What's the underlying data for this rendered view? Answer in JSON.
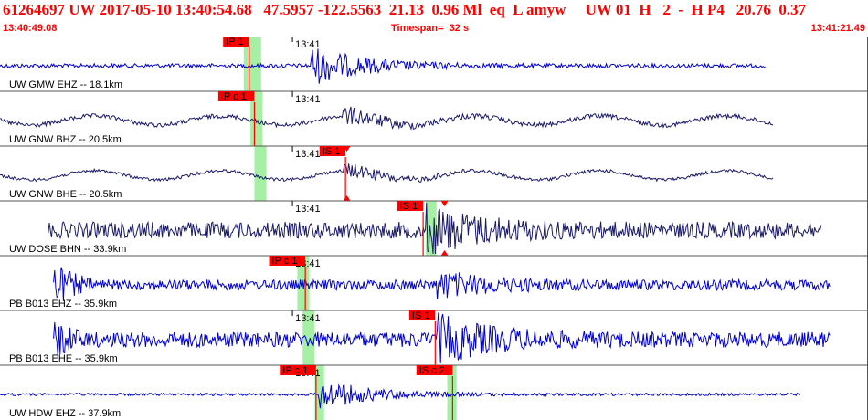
{
  "header": {
    "title": "61264697 UW 2017-05-10 13:40:54.68   47.5957 -122.5563  21.13  0.96 Ml  eq  L amyw     UW 01  H   2  -  H P4   20.76  0.37",
    "start_time": "13:40:49.08",
    "timespan": "Timespan=  32 s",
    "end_time": "13:41:21.49"
  },
  "colors": {
    "accent": "#ff0000",
    "trace_blue": "#0000cc",
    "trace_dark": "#1a1a66",
    "pick_window": "#a6f0a6",
    "separator": "#555555"
  },
  "time_window": {
    "start_s": 0,
    "end_s": 32.41,
    "minute_mark_label": "13:41",
    "minute_mark_s": 10.92
  },
  "channels": [
    {
      "label": "UW GMW EHZ -- 18.1km",
      "trace_color": "trace_blue",
      "picks": [
        {
          "label": "IP 1",
          "time_s": 9.3,
          "window": [
            9.1,
            9.75
          ],
          "color": "red"
        }
      ],
      "onset_s": 11.6,
      "amp": 0.75,
      "noise": 0.08,
      "wave": "noise",
      "extent": [
        0,
        28.6
      ],
      "triangles": []
    },
    {
      "label": "UW GNW BHZ -- 20.5km",
      "trace_color": "trace_dark",
      "picks": [
        {
          "label": "IP c 1",
          "time_s": 9.5,
          "window": [
            9.35,
            9.8
          ],
          "color": "red"
        }
      ],
      "onset_s": 12.8,
      "amp": 0.55,
      "noise": 0.14,
      "wave": "swell",
      "extent": [
        0,
        28.9
      ],
      "triangles": []
    },
    {
      "label": "UW GNW BHE -- 20.5km",
      "trace_color": "trace_dark",
      "picks": [
        {
          "label": "IS 1",
          "time_s": 12.9,
          "window": [
            9.5,
            9.95
          ],
          "color": "red"
        }
      ],
      "onset_s": 12.8,
      "amp": 0.45,
      "noise": 0.1,
      "wave": "swell",
      "extent": [
        0,
        28.9
      ],
      "triangles": [
        12.95
      ]
    },
    {
      "label": "UW DOSE BHN -- 33.9km",
      "trace_color": "trace_dark",
      "picks": [
        {
          "label": "IS 1",
          "time_s": 15.8,
          "window": [
            15.9,
            16.3
          ],
          "color": "red"
        }
      ],
      "onset_s": 15.9,
      "amp": 0.85,
      "noise": 0.32,
      "wave": "noise",
      "extent": [
        1.8,
        30.7
      ],
      "triangles": [
        16.6
      ]
    },
    {
      "label": "PB B013 EHZ -- 35.9km",
      "trace_color": "trace_blue",
      "picks": [
        {
          "label": "IP c 1",
          "time_s": 11.4,
          "window": [
            11.1,
            11.55
          ],
          "color": "red"
        }
      ],
      "onset_s": 16.3,
      "amp": 0.45,
      "noise": 0.2,
      "wave": "ring",
      "extent": [
        2.0,
        31.0
      ],
      "triangles": []
    },
    {
      "label": "PB B013 EHE -- 35.9km",
      "trace_color": "trace_blue",
      "picks": [
        {
          "label": "IS 1",
          "time_s": 16.25,
          "window": [
            11.3,
            11.75
          ],
          "color": "red"
        }
      ],
      "onset_s": 16.3,
      "amp": 0.8,
      "noise": 0.3,
      "wave": "ring",
      "extent": [
        2.0,
        31.0
      ],
      "triangles": []
    },
    {
      "label": "UW HDW EHZ -- 37.9km",
      "trace_color": "trace_blue",
      "picks": [
        {
          "label": "IP c 1",
          "time_s": 11.8,
          "window": [
            11.75,
            12.1
          ],
          "color": "red"
        },
        {
          "label": "IS c 2",
          "time_s": 16.9,
          "window": [
            16.7,
            17.05
          ],
          "color": "red"
        }
      ],
      "onset_s": 11.9,
      "amp": 0.6,
      "noise": 0.05,
      "wave": "noise",
      "extent": [
        0,
        29.9
      ],
      "triangles": []
    }
  ]
}
